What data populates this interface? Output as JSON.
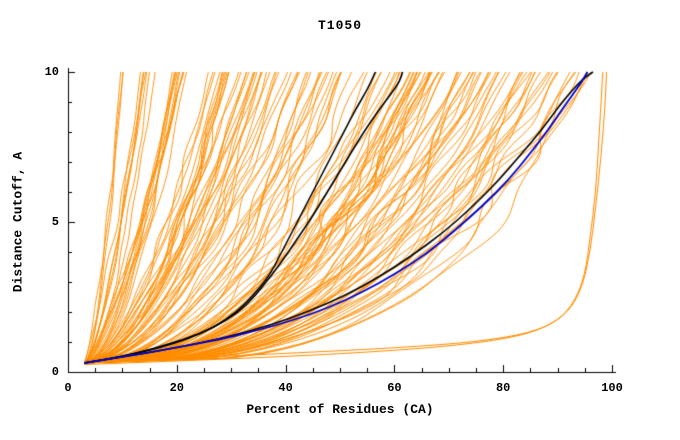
{
  "chart_data": {
    "type": "line",
    "title": "T1050",
    "xlabel": "Percent of Residues (CA)",
    "ylabel": "Distance Cutoff, A",
    "xlim": [
      0,
      100
    ],
    "ylim": [
      0,
      10
    ],
    "x_ticks": [
      0,
      20,
      40,
      60,
      80,
      100
    ],
    "x_minor_step": 5,
    "y_ticks": [
      0,
      5,
      10
    ],
    "y_minor_step": 1,
    "grid": false,
    "legend": "none",
    "colors": {
      "ensemble": "#ff8c00",
      "highlight_blue": "#0000cd",
      "highlight_black": "#000000",
      "axis": "#000000",
      "background": "#ffffff"
    },
    "ensemble": {
      "count": 140,
      "seed": 1234567,
      "color": "#ff8c00",
      "start": [
        3,
        0.3
      ],
      "reach_min": 9,
      "reach_max": 96.5
    },
    "series": [
      {
        "name": "orange-outlier-low-right-1",
        "color": "#ff8c00",
        "width": 1,
        "points": [
          [
            3,
            0.3
          ],
          [
            20,
            0.45
          ],
          [
            40,
            0.62
          ],
          [
            60,
            0.8
          ],
          [
            75,
            1.0
          ],
          [
            85,
            1.3
          ],
          [
            90,
            1.7
          ],
          [
            93,
            2.3
          ],
          [
            95,
            3.2
          ],
          [
            96,
            4.5
          ],
          [
            97,
            6.0
          ],
          [
            97.5,
            7.5
          ],
          [
            98,
            9.0
          ],
          [
            98.3,
            10
          ]
        ]
      },
      {
        "name": "orange-outlier-low-right-2",
        "color": "#ff8c00",
        "width": 1,
        "points": [
          [
            3,
            0.25
          ],
          [
            25,
            0.4
          ],
          [
            50,
            0.6
          ],
          [
            70,
            0.85
          ],
          [
            82,
            1.15
          ],
          [
            88,
            1.5
          ],
          [
            92,
            2.0
          ],
          [
            94.5,
            2.8
          ],
          [
            96,
            4.0
          ],
          [
            97,
            5.5
          ],
          [
            98,
            7.2
          ],
          [
            98.7,
            8.8
          ],
          [
            99,
            10
          ]
        ]
      },
      {
        "name": "black-model-mid-a",
        "color": "#000000",
        "width": 1.6,
        "points": [
          [
            3,
            0.3
          ],
          [
            7,
            0.42
          ],
          [
            12,
            0.6
          ],
          [
            17,
            0.82
          ],
          [
            22,
            1.1
          ],
          [
            27,
            1.5
          ],
          [
            31,
            2.0
          ],
          [
            34,
            2.55
          ],
          [
            37,
            3.2
          ],
          [
            39,
            3.9
          ],
          [
            41,
            4.6
          ],
          [
            43,
            5.3
          ],
          [
            45,
            6.0
          ],
          [
            47,
            6.7
          ],
          [
            49,
            7.4
          ],
          [
            51,
            8.1
          ],
          [
            53,
            8.8
          ],
          [
            55,
            9.4
          ],
          [
            56.5,
            10
          ]
        ]
      },
      {
        "name": "black-model-mid-b",
        "color": "#000000",
        "width": 1.6,
        "points": [
          [
            3,
            0.3
          ],
          [
            8,
            0.45
          ],
          [
            13,
            0.65
          ],
          [
            18,
            0.9
          ],
          [
            24,
            1.25
          ],
          [
            29,
            1.7
          ],
          [
            33,
            2.25
          ],
          [
            36,
            2.9
          ],
          [
            39,
            3.6
          ],
          [
            42,
            4.4
          ],
          [
            45,
            5.2
          ],
          [
            48,
            6.1
          ],
          [
            51,
            7.0
          ],
          [
            54,
            7.9
          ],
          [
            57,
            8.7
          ],
          [
            59.5,
            9.3
          ],
          [
            61,
            9.7
          ],
          [
            61.5,
            10
          ]
        ]
      },
      {
        "name": "black-model-right",
        "color": "#000000",
        "width": 1.6,
        "points": [
          [
            3,
            0.3
          ],
          [
            9,
            0.48
          ],
          [
            16,
            0.68
          ],
          [
            23,
            0.92
          ],
          [
            30,
            1.2
          ],
          [
            37,
            1.55
          ],
          [
            44,
            2.0
          ],
          [
            51,
            2.55
          ],
          [
            57,
            3.15
          ],
          [
            63,
            3.85
          ],
          [
            69,
            4.65
          ],
          [
            74,
            5.45
          ],
          [
            79,
            6.35
          ],
          [
            83,
            7.2
          ],
          [
            87,
            8.05
          ],
          [
            90,
            8.8
          ],
          [
            92.5,
            9.35
          ],
          [
            94.5,
            9.75
          ],
          [
            96.5,
            10
          ]
        ]
      },
      {
        "name": "blue-model",
        "color": "#0000cd",
        "width": 1.8,
        "points": [
          [
            3,
            0.3
          ],
          [
            8,
            0.45
          ],
          [
            14,
            0.62
          ],
          [
            20,
            0.82
          ],
          [
            27,
            1.05
          ],
          [
            34,
            1.35
          ],
          [
            41,
            1.7
          ],
          [
            48,
            2.15
          ],
          [
            54,
            2.65
          ],
          [
            60,
            3.25
          ],
          [
            66,
            3.95
          ],
          [
            71,
            4.7
          ],
          [
            76,
            5.5
          ],
          [
            81,
            6.4
          ],
          [
            85,
            7.3
          ],
          [
            88,
            8.0
          ],
          [
            91,
            8.8
          ],
          [
            93,
            9.3
          ],
          [
            94.5,
            9.7
          ],
          [
            95.5,
            10
          ]
        ]
      }
    ]
  }
}
